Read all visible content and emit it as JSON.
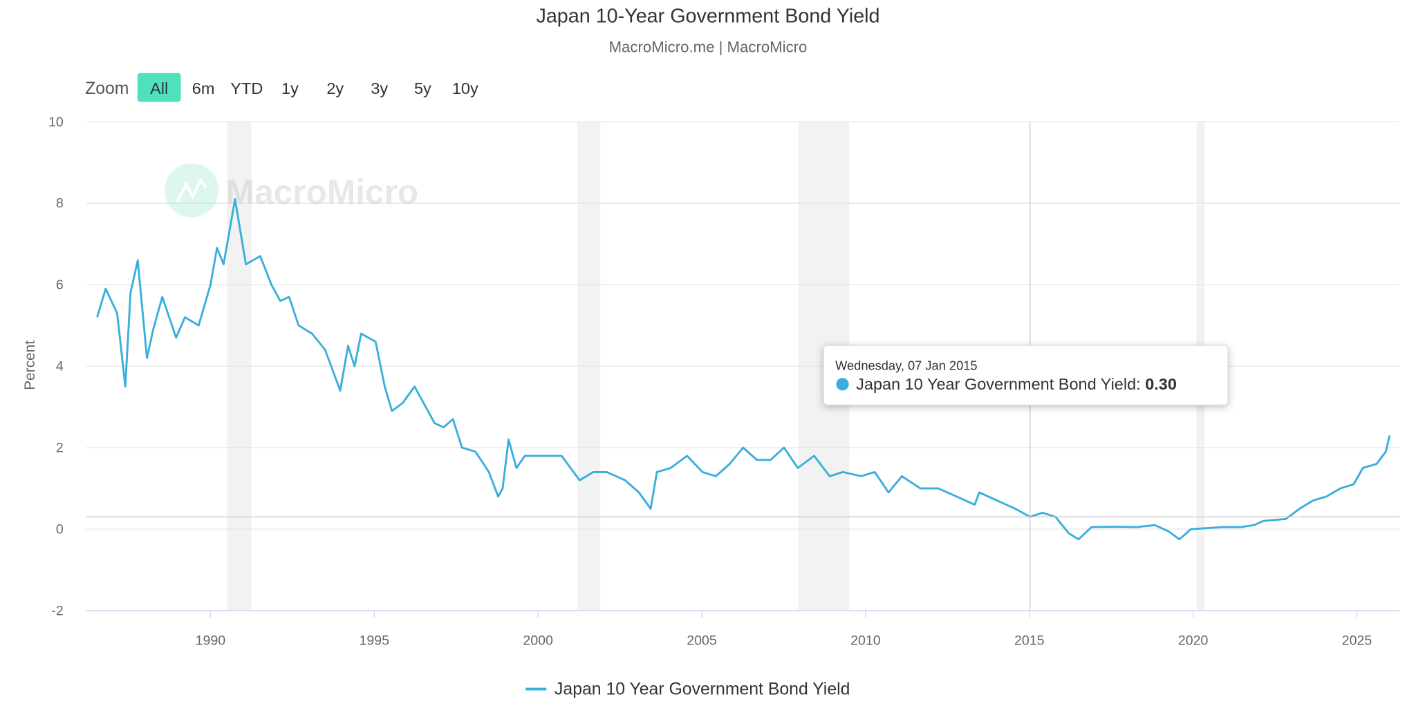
{
  "header": {
    "title": "Japan 10-Year Government Bond Yield",
    "subtitle": "MacroMicro.me | MacroMicro"
  },
  "zoom": {
    "label": "Zoom",
    "buttons": [
      "All",
      "6m",
      "YTD",
      "1y",
      "2y",
      "3y",
      "5y",
      "10y"
    ],
    "active": "All",
    "active_color": "#4fe0bf"
  },
  "watermark": "MacroMicro",
  "tooltip": {
    "date": "Wednesday, 07 Jan 2015",
    "series": "Japan 10 Year Government Bond Yield:",
    "value": "0.30"
  },
  "legend": {
    "label": "Japan 10 Year Government Bond Yield"
  },
  "chart_data": {
    "type": "line",
    "title": "Japan 10-Year Government Bond Yield",
    "subtitle": "MacroMicro.me | MacroMicro",
    "ylabel": "Percent",
    "xlabel": "",
    "ylim": [
      -2,
      10
    ],
    "yticks": [
      10,
      8,
      6,
      4,
      2,
      0,
      -2
    ],
    "xlim": [
      1986.2,
      2026.3
    ],
    "xticks": [
      1990,
      1995,
      2000,
      2005,
      2010,
      2015,
      2020,
      2025
    ],
    "grid": true,
    "legend_position": "bottom",
    "color": "#3aaedb",
    "recession_bands": [
      [
        1990.5,
        1991.25
      ],
      [
        2001.2,
        2001.9
      ],
      [
        2007.95,
        2009.5
      ],
      [
        2020.1,
        2020.35
      ]
    ],
    "crosshair": {
      "x": 2015.02,
      "y": 0.3
    },
    "series": [
      {
        "name": "Japan 10 Year Government Bond Yield",
        "x": [
          1986.54,
          1986.8,
          1987.15,
          1987.4,
          1987.56,
          1987.78,
          1988.06,
          1988.25,
          1988.53,
          1988.95,
          1989.22,
          1989.64,
          1990.0,
          1990.2,
          1990.4,
          1990.75,
          1991.08,
          1991.52,
          1991.86,
          1992.13,
          1992.4,
          1992.69,
          1993.1,
          1993.5,
          1993.96,
          1994.2,
          1994.4,
          1994.6,
          1995.04,
          1995.32,
          1995.54,
          1995.87,
          1996.23,
          1996.57,
          1996.84,
          1997.12,
          1997.4,
          1997.68,
          1998.09,
          1998.5,
          1998.78,
          1998.92,
          1999.1,
          1999.34,
          1999.6,
          2000.17,
          2000.72,
          2001.27,
          2001.69,
          2002.1,
          2002.66,
          2003.08,
          2003.44,
          2003.63,
          2004.05,
          2004.55,
          2005.02,
          2005.43,
          2005.85,
          2006.26,
          2006.68,
          2007.1,
          2007.51,
          2007.93,
          2008.43,
          2008.9,
          2009.31,
          2009.87,
          2010.28,
          2010.7,
          2011.11,
          2011.67,
          2012.22,
          2012.78,
          2013.33,
          2013.47,
          2014.02,
          2014.57,
          2015.02,
          2015.4,
          2015.8,
          2016.2,
          2016.5,
          2016.9,
          2017.6,
          2018.3,
          2018.83,
          2019.24,
          2019.58,
          2019.93,
          2020.35,
          2020.9,
          2021.45,
          2021.86,
          2022.14,
          2022.83,
          2023.25,
          2023.66,
          2024.07,
          2024.5,
          2024.9,
          2025.18,
          2025.6,
          2025.88,
          2026.0
        ],
        "y": [
          5.2,
          5.9,
          5.3,
          3.5,
          5.8,
          6.6,
          4.2,
          4.9,
          5.7,
          4.7,
          5.2,
          5.0,
          6.0,
          6.9,
          6.5,
          8.1,
          6.5,
          6.7,
          6.0,
          5.6,
          5.7,
          5.0,
          4.8,
          4.4,
          3.4,
          4.5,
          4.0,
          4.8,
          4.6,
          3.5,
          2.9,
          3.1,
          3.5,
          3.0,
          2.6,
          2.5,
          2.7,
          2.0,
          1.9,
          1.4,
          0.8,
          1.0,
          2.2,
          1.5,
          1.8,
          1.8,
          1.8,
          1.2,
          1.4,
          1.4,
          1.2,
          0.9,
          0.5,
          1.4,
          1.5,
          1.8,
          1.4,
          1.3,
          1.6,
          2.0,
          1.7,
          1.7,
          2.0,
          1.5,
          1.8,
          1.3,
          1.4,
          1.3,
          1.4,
          0.9,
          1.3,
          1.0,
          1.0,
          0.8,
          0.6,
          0.9,
          0.7,
          0.5,
          0.3,
          0.4,
          0.3,
          -0.1,
          -0.25,
          0.05,
          0.06,
          0.05,
          0.1,
          -0.05,
          -0.25,
          0.0,
          0.02,
          0.05,
          0.05,
          0.1,
          0.2,
          0.25,
          0.5,
          0.7,
          0.8,
          1.0,
          1.1,
          1.5,
          1.6,
          1.9,
          2.3
        ]
      }
    ]
  }
}
